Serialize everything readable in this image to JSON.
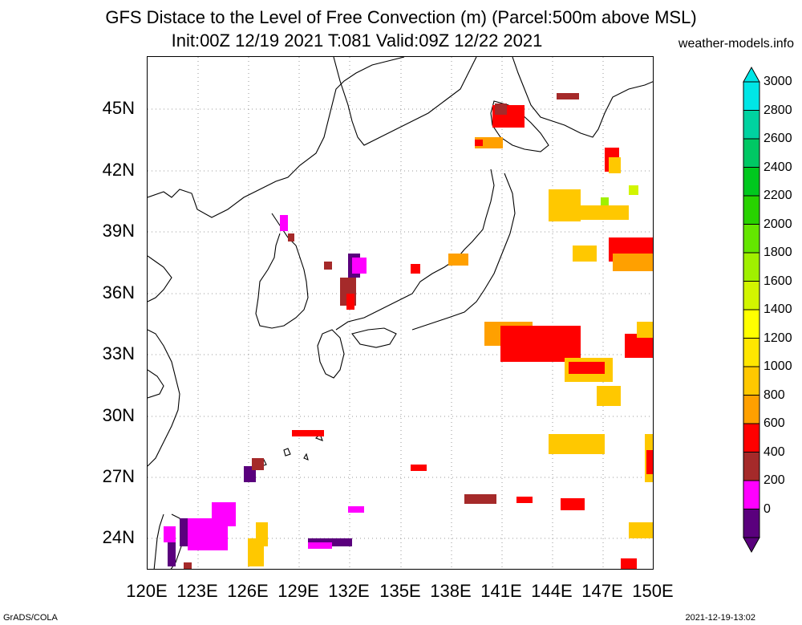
{
  "title_line1": "GFS Distace to the Level of Free Convection (m) (Parcel:500m above MSL)",
  "title_line2": "Init:00Z 12/19 2021 T:081 Valid:09Z 12/22 2021",
  "site": "weather-models.info",
  "footer_left": "GrADS/COLA",
  "footer_right": "2021-12-19-13:02",
  "y_labels": [
    "45N",
    "42N",
    "39N",
    "36N",
    "33N",
    "30N",
    "27N",
    "24N"
  ],
  "x_labels": [
    "120E",
    "123E",
    "126E",
    "129E",
    "132E",
    "135E",
    "138E",
    "141E",
    "144E",
    "147E",
    "150E"
  ],
  "colorbar": {
    "labels": [
      "3000",
      "2800",
      "2600",
      "2400",
      "2200",
      "2000",
      "1800",
      "1600",
      "1400",
      "1200",
      "1000",
      "800",
      "600",
      "400",
      "200",
      "0"
    ],
    "colors": [
      "#00e6e6",
      "#00d2a0",
      "#00c864",
      "#00c81e",
      "#28d200",
      "#64e600",
      "#a0f000",
      "#d2f500",
      "#ffff00",
      "#ffe600",
      "#ffc800",
      "#ffa000",
      "#ff0000",
      "#a52a2a",
      "#ff00ff",
      "#5a007d"
    ]
  }
}
